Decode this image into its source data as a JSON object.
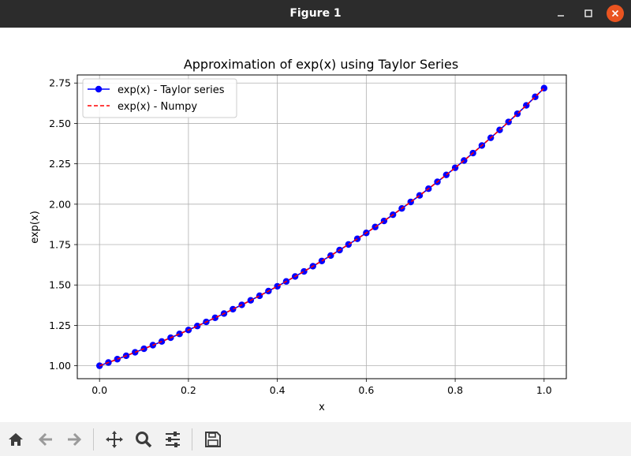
{
  "window": {
    "title": "Figure 1"
  },
  "toolbar": {
    "icons": [
      "home-icon",
      "back-arrow-icon",
      "forward-arrow-icon",
      "pan-icon",
      "zoom-icon",
      "configure-subplots-icon",
      "save-icon"
    ]
  },
  "colors": {
    "taylor": "#0000ff",
    "numpy": "#ff0000",
    "grid": "#b0b0b0",
    "titlebar": "#2c2c2c",
    "close": "#e95420"
  },
  "chart_data": {
    "type": "line",
    "title": "Approximation of exp(x) using Taylor Series",
    "xlabel": "x",
    "ylabel": "exp(x)",
    "xlim": [
      -0.05,
      1.05
    ],
    "ylim": [
      0.92,
      2.8
    ],
    "xticks": [
      "0.0",
      "0.2",
      "0.4",
      "0.6",
      "0.8",
      "1.0"
    ],
    "yticks": [
      "1.00",
      "1.25",
      "1.50",
      "1.75",
      "2.00",
      "2.25",
      "2.50",
      "2.75"
    ],
    "grid": true,
    "legend_position": "upper-left",
    "series": [
      {
        "name": "exp(x) - Taylor series",
        "style": "solid line with circle markers",
        "color": "#0000ff",
        "x": [
          0.0,
          0.02,
          0.04,
          0.06,
          0.08,
          0.1,
          0.12,
          0.14,
          0.16,
          0.18,
          0.2,
          0.22,
          0.24,
          0.26,
          0.28,
          0.3,
          0.32,
          0.34,
          0.36,
          0.38,
          0.4,
          0.42,
          0.44,
          0.46,
          0.48,
          0.5,
          0.52,
          0.54,
          0.56,
          0.58,
          0.6,
          0.62,
          0.64,
          0.66,
          0.68,
          0.7,
          0.72,
          0.74,
          0.76,
          0.78,
          0.8,
          0.82,
          0.84,
          0.86,
          0.88,
          0.9,
          0.92,
          0.94,
          0.96,
          0.98,
          1.0
        ],
        "y": [
          1.0,
          1.0202,
          1.0408,
          1.0618,
          1.0833,
          1.1052,
          1.1275,
          1.1503,
          1.1735,
          1.1972,
          1.2214,
          1.2461,
          1.2712,
          1.2969,
          1.3231,
          1.3499,
          1.3771,
          1.4049,
          1.4333,
          1.4623,
          1.4918,
          1.522,
          1.5527,
          1.584,
          1.6161,
          1.6487,
          1.682,
          1.716,
          1.7507,
          1.786,
          1.8221,
          1.8589,
          1.8965,
          1.9348,
          1.9739,
          2.0138,
          2.0544,
          2.0959,
          2.1383,
          2.1815,
          2.2255,
          2.2705,
          2.3164,
          2.3632,
          2.4109,
          2.4596,
          2.5093,
          2.56,
          2.6117,
          2.6645,
          2.7183
        ]
      },
      {
        "name": "exp(x) - Numpy",
        "style": "dashed line",
        "color": "#ff0000",
        "x": [
          0.0,
          0.02,
          0.04,
          0.06,
          0.08,
          0.1,
          0.12,
          0.14,
          0.16,
          0.18,
          0.2,
          0.22,
          0.24,
          0.26,
          0.28,
          0.3,
          0.32,
          0.34,
          0.36,
          0.38,
          0.4,
          0.42,
          0.44,
          0.46,
          0.48,
          0.5,
          0.52,
          0.54,
          0.56,
          0.58,
          0.6,
          0.62,
          0.64,
          0.66,
          0.68,
          0.7,
          0.72,
          0.74,
          0.76,
          0.78,
          0.8,
          0.82,
          0.84,
          0.86,
          0.88,
          0.9,
          0.92,
          0.94,
          0.96,
          0.98,
          1.0
        ],
        "y": [
          1.0,
          1.0202,
          1.0408,
          1.0618,
          1.0833,
          1.1052,
          1.1275,
          1.1503,
          1.1735,
          1.1972,
          1.2214,
          1.2461,
          1.2712,
          1.2969,
          1.3231,
          1.3499,
          1.3771,
          1.4049,
          1.4333,
          1.4623,
          1.4918,
          1.522,
          1.5527,
          1.584,
          1.6161,
          1.6487,
          1.682,
          1.716,
          1.7507,
          1.786,
          1.8221,
          1.8589,
          1.8965,
          1.9348,
          1.9739,
          2.0138,
          2.0544,
          2.0959,
          2.1383,
          2.1815,
          2.2255,
          2.2705,
          2.3164,
          2.3632,
          2.4109,
          2.4596,
          2.5093,
          2.56,
          2.6117,
          2.6645,
          2.7183
        ]
      }
    ]
  }
}
